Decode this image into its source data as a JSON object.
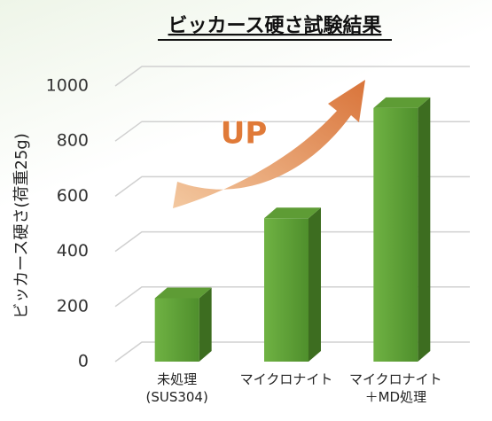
{
  "chart_data": {
    "type": "bar3d",
    "title": "ビッカース硬さ試験結果",
    "y_label": "ビッカース硬さ(荷重25g)",
    "annotation": "UP",
    "categories": [
      "未処理\n(SUS304)",
      "マイクロナイト",
      "マイクロナイト\n＋MD処理"
    ],
    "values": [
      230,
      520,
      920
    ],
    "color": "#5a9e32",
    "ylim": [
      0,
      1000
    ],
    "yticks": [
      0,
      200,
      400,
      600,
      800,
      1000
    ],
    "grid": true
  }
}
